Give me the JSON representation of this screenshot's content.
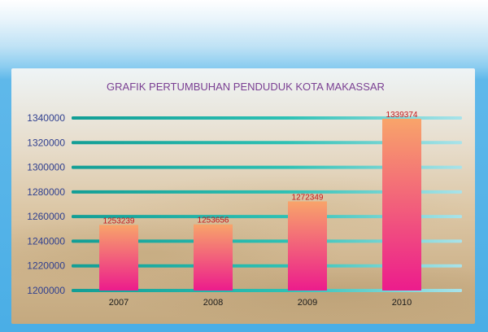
{
  "chart_data": {
    "type": "bar",
    "title": "GRAFIK PERTUMBUHAN PENDUDUK KOTA MAKASSAR",
    "categories": [
      "2007",
      "2008",
      "2009",
      "2010"
    ],
    "values": [
      1253239,
      1253656,
      1272349,
      1339374
    ],
    "value_labels": [
      "1253239",
      "1253656",
      "1272349",
      "1339374"
    ],
    "yticks": [
      "1200000",
      "1220000",
      "1240000",
      "1260000",
      "1280000",
      "1300000",
      "1320000",
      "1340000"
    ],
    "ylim": [
      1200000,
      1340000
    ],
    "grid": true,
    "colors": {
      "bar_top": "#f8a46a",
      "bar_bottom": "#ec1c8c",
      "grid": "#1bb7a8",
      "title": "#7a3f93",
      "tick": "#2f3f8f",
      "value_label": "#c4161c"
    }
  }
}
